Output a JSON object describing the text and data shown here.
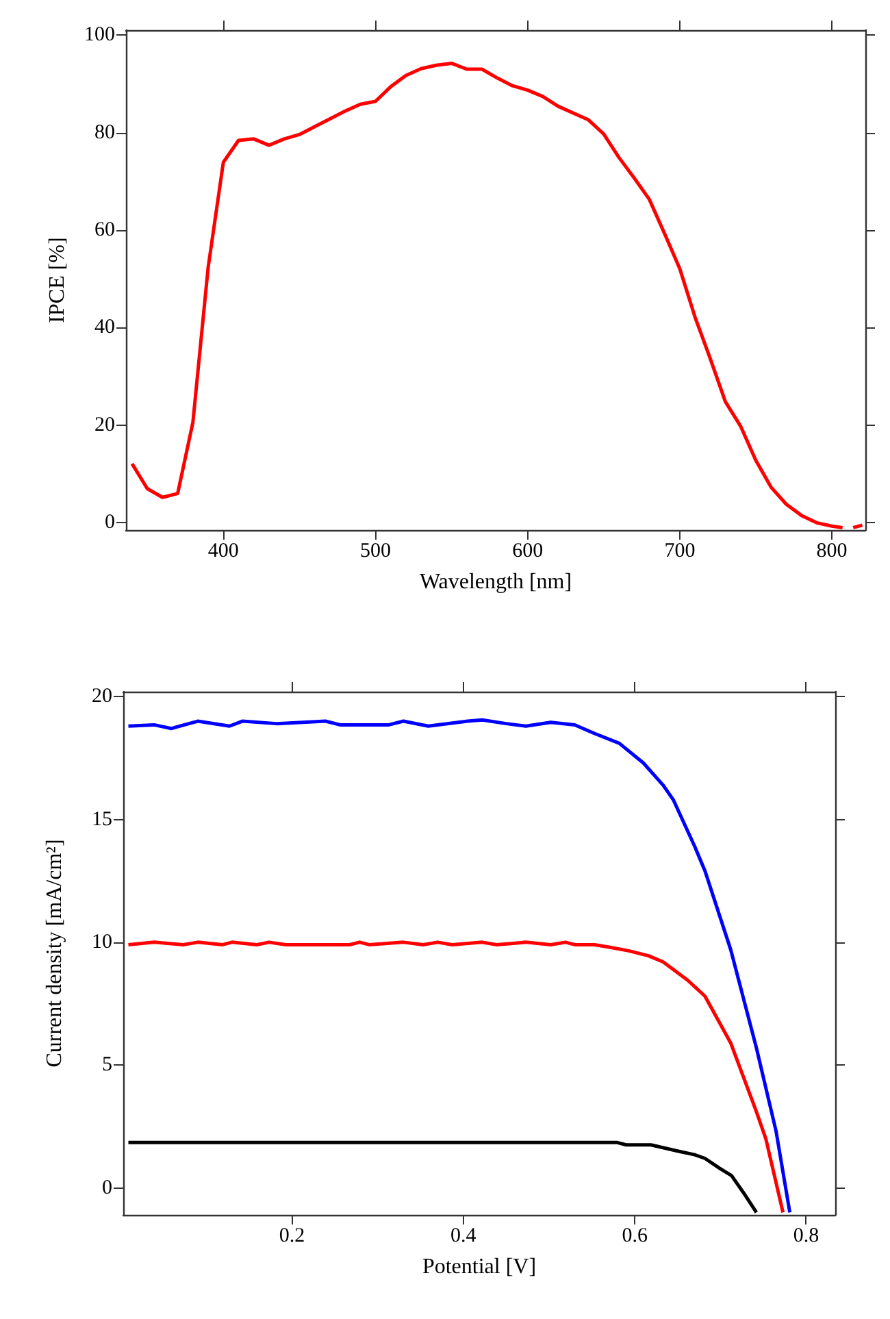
{
  "chart_data": [
    {
      "type": "line",
      "xlabel": "Wavelength [nm]",
      "ylabel": "IPCE [%]",
      "color": "#ff0000",
      "marker": "none",
      "x": [
        340,
        350,
        360,
        370,
        380,
        390,
        400,
        410,
        420,
        430,
        440,
        450,
        460,
        480,
        490,
        500,
        510,
        520,
        530,
        540,
        550,
        560,
        570,
        580,
        590,
        600,
        610,
        620,
        640,
        650,
        660,
        670,
        680,
        690,
        700,
        710,
        720,
        730,
        740,
        750,
        760,
        770,
        780,
        790,
        800,
        807,
        810,
        814,
        820
      ],
      "values": [
        12.1,
        7.0,
        5.2,
        6.0,
        20.6,
        52.3,
        73.9,
        78.4,
        78.7,
        77.4,
        78.7,
        79.6,
        81.2,
        84.4,
        85.8,
        86.4,
        89.4,
        91.7,
        93.1,
        93.8,
        94.2,
        93.0,
        93.0,
        91.2,
        89.6,
        88.7,
        87.4,
        85.4,
        82.6,
        79.7,
        74.9,
        70.7,
        66.3,
        59.3,
        52.1,
        42.2,
        33.7,
        24.8,
        19.8,
        12.8,
        7.3,
        3.8,
        1.5,
        0.0,
        -0.7,
        -1.0,
        null,
        -1.0,
        -0.5
      ],
      "xlim": [
        336,
        822
      ],
      "xticks": [
        400,
        500,
        600,
        700,
        800
      ],
      "ylim": [
        -1.5,
        101
      ],
      "yticks": [
        0,
        20,
        40,
        60,
        80,
        100
      ]
    },
    {
      "type": "line",
      "xlabel": "Potential [V]",
      "ylabel": "Current density [mA/cm²]",
      "marker": "none",
      "series": [
        {
          "color": "#0000ff",
          "x": [
            0.009,
            0.039,
            0.059,
            0.09,
            0.127,
            0.142,
            0.182,
            0.239,
            0.256,
            0.313,
            0.33,
            0.359,
            0.405,
            0.422,
            0.45,
            0.473,
            0.502,
            0.53,
            0.553,
            0.582,
            0.61,
            0.633,
            0.645,
            0.67,
            0.682,
            0.712,
            0.742,
            0.765,
            0.781
          ],
          "values": [
            18.8,
            18.85,
            18.7,
            19.0,
            18.8,
            19.0,
            18.9,
            19.0,
            18.85,
            18.85,
            19.0,
            18.8,
            19.0,
            19.05,
            18.9,
            18.8,
            18.95,
            18.85,
            18.5,
            18.1,
            17.3,
            16.4,
            15.8,
            13.9,
            12.9,
            9.7,
            5.7,
            2.3,
            -1.0
          ]
        },
        {
          "color": "#ff0000",
          "x": [
            0.009,
            0.039,
            0.073,
            0.09,
            0.119,
            0.13,
            0.159,
            0.173,
            0.193,
            0.267,
            0.279,
            0.29,
            0.33,
            0.353,
            0.37,
            0.387,
            0.422,
            0.439,
            0.473,
            0.502,
            0.519,
            0.53,
            0.553,
            0.57,
            0.593,
            0.616,
            0.633,
            0.662,
            0.682,
            0.712,
            0.742,
            0.753,
            0.773
          ],
          "values": [
            9.9,
            10.0,
            9.9,
            10.0,
            9.9,
            10.0,
            9.9,
            10.0,
            9.9,
            9.9,
            10.0,
            9.9,
            10.0,
            9.9,
            10.0,
            9.9,
            10.0,
            9.9,
            10.0,
            9.9,
            10.0,
            9.9,
            9.9,
            9.8,
            9.65,
            9.45,
            9.2,
            8.45,
            7.8,
            5.9,
            3.1,
            2.0,
            -1.0
          ]
        },
        {
          "color": "#000000",
          "x": [
            0.009,
            0.579,
            0.59,
            0.619,
            0.65,
            0.67,
            0.682,
            0.699,
            0.713,
            0.727,
            0.742
          ],
          "values": [
            1.85,
            1.85,
            1.75,
            1.75,
            1.5,
            1.35,
            1.2,
            0.8,
            0.5,
            -0.2,
            -1.0
          ]
        }
      ],
      "xlim": [
        0.003,
        0.834
      ],
      "xticks": [
        0.2,
        0.4,
        0.6,
        0.8
      ],
      "ylim": [
        -1.1,
        20.2
      ],
      "yticks": [
        0,
        5,
        10,
        15,
        20
      ]
    }
  ]
}
